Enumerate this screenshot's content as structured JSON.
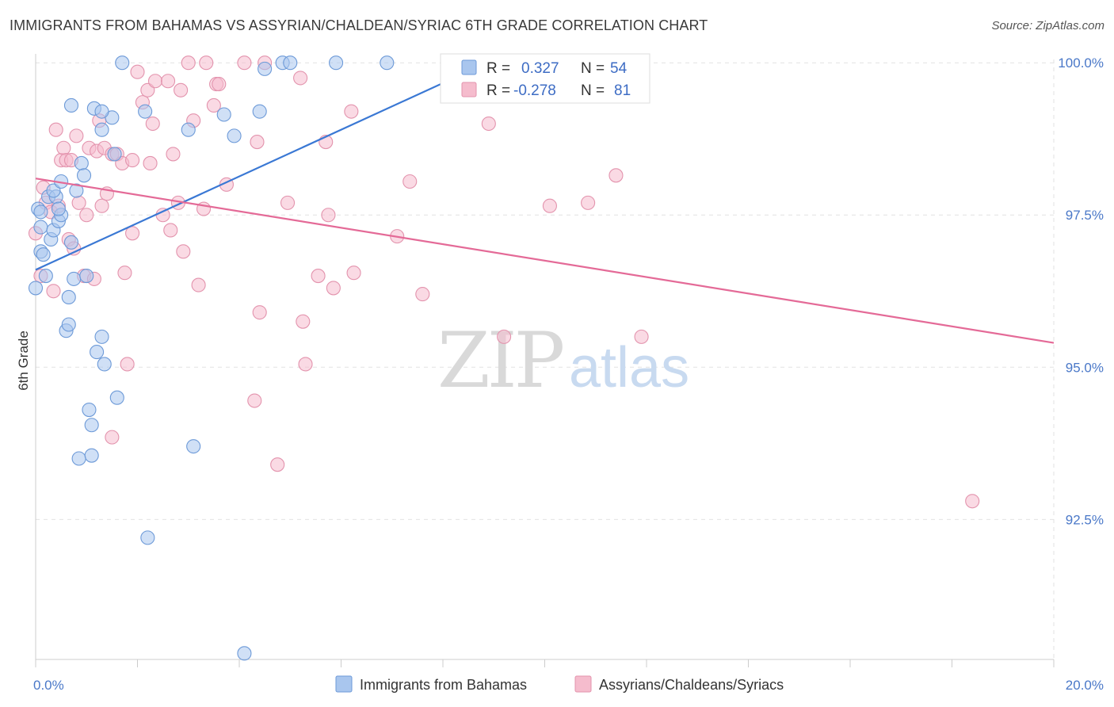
{
  "title": "IMMIGRANTS FROM BAHAMAS VS ASSYRIAN/CHALDEAN/SYRIAC 6TH GRADE CORRELATION CHART",
  "source": "Source: ZipAtlas.com",
  "colors": {
    "blue_fill": "#a9c6ee",
    "blue_stroke": "#6d9ad8",
    "blue_line": "#3a78d4",
    "pink_fill": "#f5bccd",
    "pink_stroke": "#e393ad",
    "pink_line": "#e46a97",
    "grid": "#e2e2e2"
  },
  "watermark": {
    "zip": "ZIP",
    "atlas": "atlas"
  },
  "legend": {
    "rows": [
      {
        "r_label": "R =",
        "r_value": "0.327",
        "n_label": "N =",
        "n_value": "54"
      },
      {
        "r_label": "R =",
        "r_value": "-0.278",
        "n_label": "N =",
        "n_value": "81"
      }
    ]
  },
  "chart_data": {
    "type": "scatter",
    "title": "IMMIGRANTS FROM BAHAMAS VS ASSYRIAN/CHALDEAN/SYRIAC 6TH GRADE CORRELATION CHART",
    "xlabel": "",
    "ylabel": "6th Grade",
    "xlim": [
      0,
      20
    ],
    "ylim": [
      90.2,
      100.25
    ],
    "x_tick_labels": [
      "0.0%",
      "20.0%"
    ],
    "y_ticks": [
      92.5,
      95.0,
      97.5,
      100.0
    ],
    "y_tick_labels": [
      "92.5%",
      "95.0%",
      "97.5%",
      "100.0%"
    ],
    "grid": true,
    "legend_position": "bottom",
    "series": [
      {
        "name": "Immigrants from Bahamas",
        "color": "#a9c6ee",
        "trend": {
          "x": [
            0.0,
            9.0
          ],
          "y": [
            96.6,
            100.05
          ]
        },
        "points": [
          [
            0.0,
            96.3
          ],
          [
            0.05,
            97.6
          ],
          [
            0.1,
            97.3
          ],
          [
            0.1,
            96.9
          ],
          [
            0.15,
            96.85
          ],
          [
            0.2,
            96.5
          ],
          [
            0.25,
            97.8
          ],
          [
            0.3,
            97.1
          ],
          [
            0.35,
            97.25
          ],
          [
            0.4,
            97.8
          ],
          [
            0.45,
            97.4
          ],
          [
            0.5,
            97.5
          ],
          [
            0.35,
            97.9
          ],
          [
            0.5,
            98.05
          ],
          [
            0.6,
            95.6
          ],
          [
            0.65,
            95.7
          ],
          [
            0.65,
            96.15
          ],
          [
            0.7,
            97.05
          ],
          [
            0.75,
            96.45
          ],
          [
            0.8,
            97.9
          ],
          [
            0.85,
            93.5
          ],
          [
            0.9,
            98.35
          ],
          [
            0.95,
            98.15
          ],
          [
            1.0,
            96.5
          ],
          [
            1.05,
            94.3
          ],
          [
            1.1,
            93.55
          ],
          [
            1.1,
            94.05
          ],
          [
            1.15,
            99.25
          ],
          [
            1.2,
            95.25
          ],
          [
            1.3,
            98.9
          ],
          [
            1.3,
            95.5
          ],
          [
            1.35,
            95.05
          ],
          [
            1.5,
            99.1
          ],
          [
            1.55,
            98.5
          ],
          [
            1.6,
            94.5
          ],
          [
            1.7,
            100.0
          ],
          [
            0.7,
            99.3
          ],
          [
            1.3,
            99.2
          ],
          [
            2.15,
            99.2
          ],
          [
            2.2,
            92.2
          ],
          [
            3.0,
            98.9
          ],
          [
            3.1,
            93.7
          ],
          [
            3.7,
            99.15
          ],
          [
            3.9,
            98.8
          ],
          [
            4.1,
            90.3
          ],
          [
            4.4,
            99.2
          ],
          [
            4.5,
            99.9
          ],
          [
            4.85,
            100.0
          ],
          [
            5.0,
            100.0
          ],
          [
            5.9,
            100.0
          ],
          [
            6.9,
            100.0
          ],
          [
            8.9,
            100.0
          ],
          [
            0.1,
            97.55
          ],
          [
            0.45,
            97.6
          ]
        ]
      },
      {
        "name": "Assyrians/Chaldeans/Syriacs",
        "color": "#f5bccd",
        "trend": {
          "x": [
            0.0,
            20.0
          ],
          "y": [
            98.1,
            95.4
          ]
        },
        "points": [
          [
            0.0,
            97.2
          ],
          [
            0.1,
            96.5
          ],
          [
            0.15,
            97.95
          ],
          [
            0.2,
            97.7
          ],
          [
            0.3,
            97.55
          ],
          [
            0.35,
            96.25
          ],
          [
            0.4,
            98.9
          ],
          [
            0.45,
            97.65
          ],
          [
            0.5,
            98.4
          ],
          [
            0.55,
            98.6
          ],
          [
            0.6,
            98.4
          ],
          [
            0.65,
            97.1
          ],
          [
            0.7,
            98.4
          ],
          [
            0.75,
            96.95
          ],
          [
            0.8,
            98.8
          ],
          [
            0.85,
            97.7
          ],
          [
            0.95,
            96.5
          ],
          [
            1.0,
            97.5
          ],
          [
            1.05,
            98.6
          ],
          [
            1.15,
            96.45
          ],
          [
            1.2,
            98.55
          ],
          [
            1.25,
            99.05
          ],
          [
            1.3,
            97.65
          ],
          [
            1.35,
            98.6
          ],
          [
            1.4,
            97.85
          ],
          [
            1.5,
            98.5
          ],
          [
            1.6,
            98.5
          ],
          [
            1.7,
            98.35
          ],
          [
            1.75,
            96.55
          ],
          [
            1.8,
            95.05
          ],
          [
            1.9,
            98.4
          ],
          [
            1.9,
            97.2
          ],
          [
            2.0,
            99.85
          ],
          [
            2.1,
            99.35
          ],
          [
            2.2,
            99.55
          ],
          [
            2.25,
            98.35
          ],
          [
            2.3,
            99.0
          ],
          [
            2.35,
            99.7
          ],
          [
            2.5,
            97.5
          ],
          [
            2.6,
            99.7
          ],
          [
            2.65,
            97.25
          ],
          [
            2.7,
            98.5
          ],
          [
            2.8,
            97.7
          ],
          [
            2.85,
            99.55
          ],
          [
            2.9,
            96.9
          ],
          [
            3.0,
            100.0
          ],
          [
            3.1,
            99.05
          ],
          [
            3.2,
            96.35
          ],
          [
            3.3,
            97.6
          ],
          [
            3.35,
            100.0
          ],
          [
            3.5,
            99.3
          ],
          [
            3.55,
            99.65
          ],
          [
            3.6,
            99.65
          ],
          [
            3.75,
            98.0
          ],
          [
            4.1,
            100.0
          ],
          [
            4.3,
            94.45
          ],
          [
            4.35,
            98.7
          ],
          [
            4.4,
            95.9
          ],
          [
            4.5,
            100.0
          ],
          [
            4.75,
            93.4
          ],
          [
            4.95,
            97.7
          ],
          [
            5.2,
            99.75
          ],
          [
            5.25,
            95.75
          ],
          [
            5.3,
            95.05
          ],
          [
            5.55,
            96.5
          ],
          [
            5.7,
            98.7
          ],
          [
            5.75,
            97.5
          ],
          [
            5.85,
            96.3
          ],
          [
            6.2,
            99.2
          ],
          [
            6.25,
            96.55
          ],
          [
            7.1,
            97.15
          ],
          [
            7.35,
            98.05
          ],
          [
            7.6,
            96.2
          ],
          [
            8.9,
            99.0
          ],
          [
            9.2,
            95.5
          ],
          [
            10.1,
            97.65
          ],
          [
            10.85,
            97.7
          ],
          [
            11.4,
            98.15
          ],
          [
            11.9,
            95.5
          ],
          [
            18.4,
            92.8
          ],
          [
            1.5,
            93.85
          ]
        ]
      }
    ]
  }
}
